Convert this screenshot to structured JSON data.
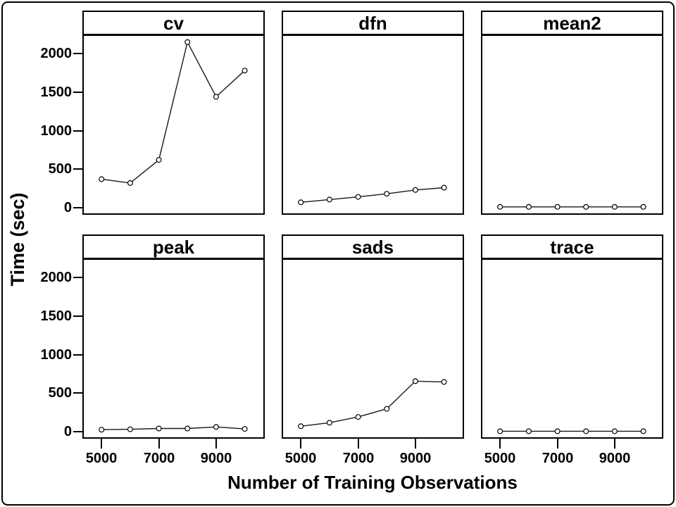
{
  "chart_data": {
    "type": "line",
    "layout": "trellis-2x3",
    "title": "",
    "xlabel": "Number of Training Observations",
    "ylabel": "Time (sec)",
    "x": [
      5000,
      6000,
      7000,
      8000,
      9000,
      10000
    ],
    "series": [
      {
        "name": "cv",
        "values": [
          370,
          320,
          620,
          2150,
          1440,
          1780
        ]
      },
      {
        "name": "dfn",
        "values": [
          70,
          105,
          140,
          180,
          230,
          260
        ]
      },
      {
        "name": "mean2",
        "values": [
          10,
          10,
          10,
          10,
          10,
          10
        ]
      },
      {
        "name": "peak",
        "values": [
          25,
          30,
          40,
          40,
          60,
          35
        ]
      },
      {
        "name": "sads",
        "values": [
          70,
          115,
          190,
          295,
          655,
          645
        ]
      },
      {
        "name": "trace",
        "values": [
          5,
          5,
          5,
          5,
          5,
          5
        ]
      }
    ],
    "xticks": [
      5000,
      7000,
      9000
    ],
    "yticks": [
      0,
      500,
      1000,
      1500,
      2000
    ],
    "xlim": [
      4380,
      10650
    ],
    "ylim": [
      -74,
      2230
    ],
    "grid": false,
    "legend": "none",
    "marker": "open-circle",
    "marker_fill": "#ffffff",
    "marker_stroke": "#000000",
    "line_color": "#1a1a1a",
    "background": "#ffffff",
    "border_color": "#000000"
  }
}
